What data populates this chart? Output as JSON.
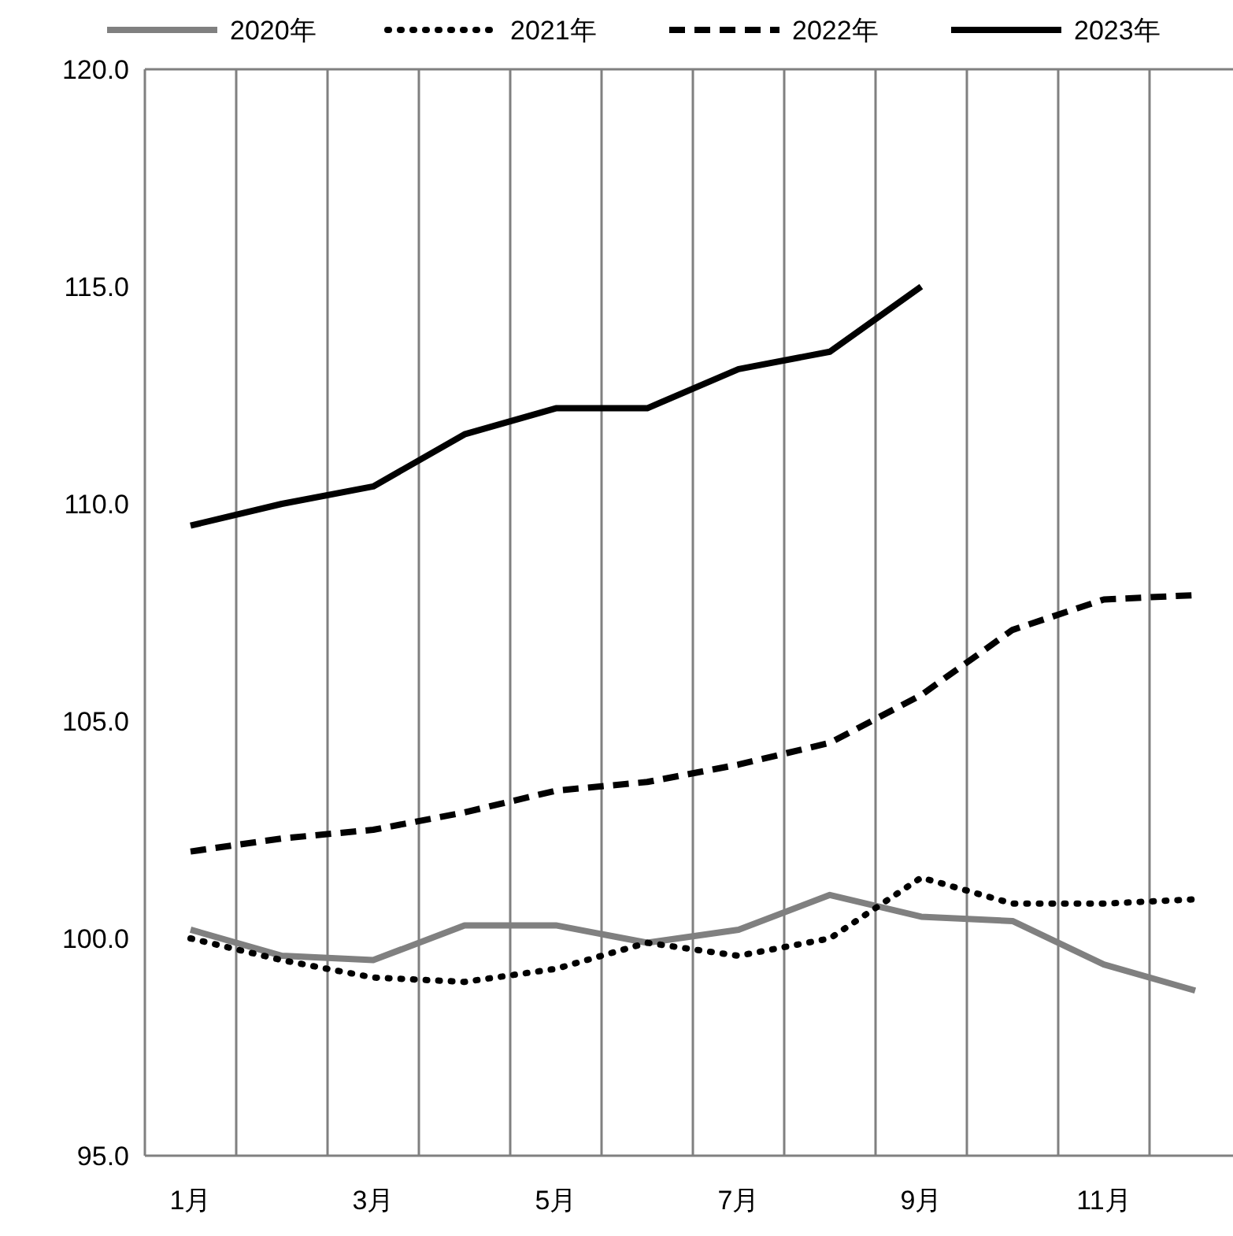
{
  "chart_data": {
    "type": "line",
    "categories": [
      "1月",
      null,
      "3月",
      null,
      "5月",
      null,
      "7月",
      null,
      "9月",
      null,
      "11月",
      null
    ],
    "ylim": [
      95,
      120
    ],
    "yticks": [
      {
        "value": 95,
        "label": "95.0"
      },
      {
        "value": 100,
        "label": "100.0"
      },
      {
        "value": 105,
        "label": "105.0"
      },
      {
        "value": 110,
        "label": "110.0"
      },
      {
        "value": 115,
        "label": "115.0"
      },
      {
        "value": 120,
        "label": "120.0"
      }
    ],
    "grid": "x",
    "legend": "top",
    "marker": "none",
    "series": [
      {
        "name": "2020年",
        "color": "#808080",
        "line_style": "solid",
        "values": [
          100.2,
          99.6,
          99.5,
          100.3,
          100.3,
          99.9,
          100.2,
          101.0,
          100.5,
          100.4,
          99.4,
          98.8
        ]
      },
      {
        "name": "2021年",
        "color": "#000000",
        "line_style": "dotted",
        "values": [
          100.0,
          99.5,
          99.1,
          99.0,
          99.3,
          99.9,
          99.6,
          100.0,
          101.4,
          100.8,
          100.8,
          100.9
        ]
      },
      {
        "name": "2022年",
        "color": "#000000",
        "line_style": "dashed",
        "values": [
          102.0,
          102.3,
          102.5,
          102.9,
          103.4,
          103.6,
          104.0,
          104.5,
          105.6,
          107.1,
          107.8,
          107.9
        ]
      },
      {
        "name": "2023年",
        "color": "#000000",
        "line_style": "solid",
        "values": [
          109.5,
          110.0,
          110.4,
          111.6,
          112.2,
          112.2,
          113.1,
          113.5,
          115.0,
          null,
          null,
          null
        ]
      }
    ]
  }
}
